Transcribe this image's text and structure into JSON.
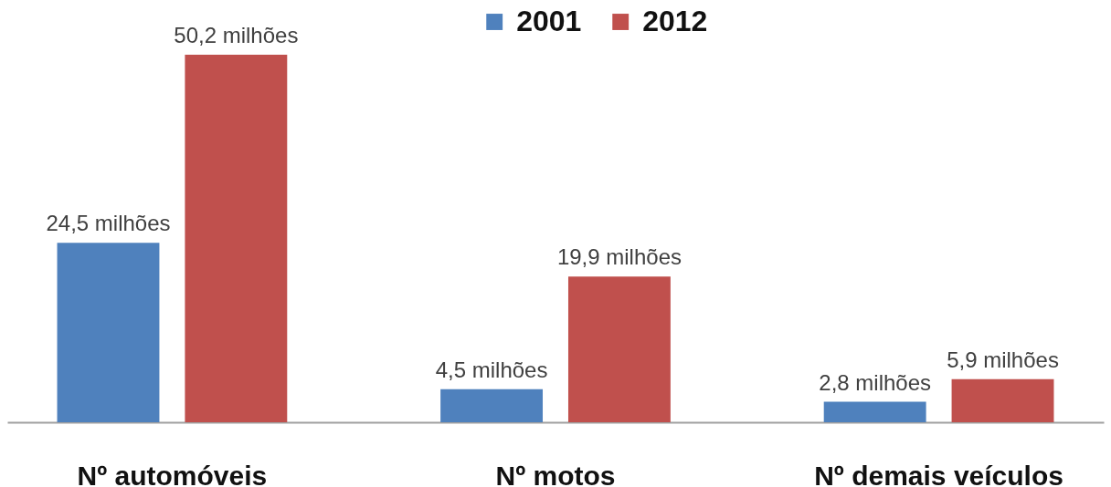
{
  "chart_data": {
    "type": "bar",
    "categories": [
      "Nº automóveis",
      "Nº motos",
      "Nº demais veículos"
    ],
    "series": [
      {
        "name": "2001",
        "color": "#4f81bd",
        "values": [
          24.5,
          4.5,
          2.8
        ],
        "value_labels": [
          "24,5 milhões",
          "4,5 milhões",
          "2,8 milhões"
        ]
      },
      {
        "name": "2012",
        "color": "#c0504d",
        "values": [
          50.2,
          19.9,
          5.9
        ],
        "value_labels": [
          "50,2 milhões",
          "19,9 milhões",
          "5,9 milhões"
        ]
      }
    ],
    "legend": "top"
  }
}
